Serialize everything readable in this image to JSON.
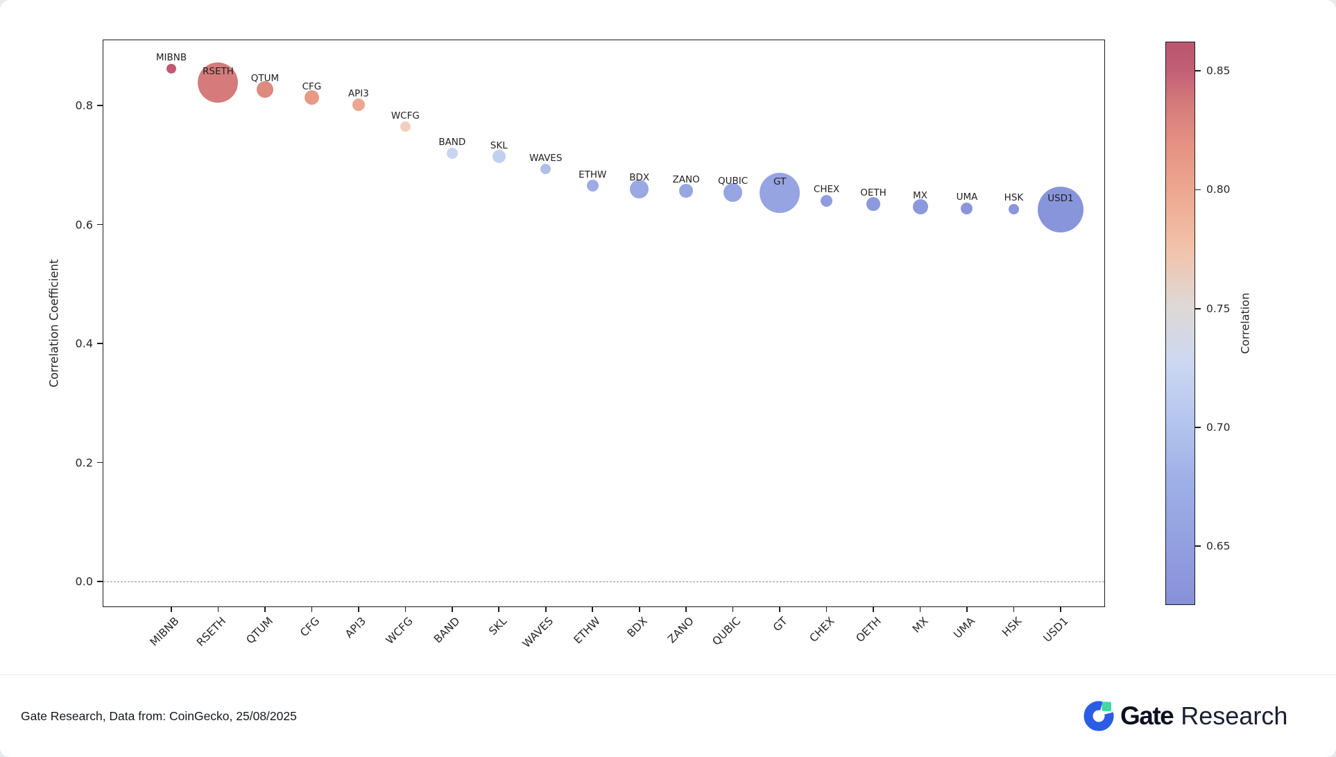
{
  "chart_data": {
    "type": "scatter",
    "title": "",
    "xlabel": "",
    "ylabel": "Correlation Coefficient",
    "y_ticks": [
      0.8,
      0.6,
      0.4,
      0.2,
      0.0
    ],
    "ylim": [
      -0.045,
      0.91
    ],
    "zero_line": 0.0,
    "grid": false,
    "colorbar": {
      "label": "Correlation",
      "ticks": [
        0.85,
        0.8,
        0.75,
        0.7,
        0.65
      ],
      "vmin": 0.625,
      "vmax": 0.862
    },
    "points": [
      {
        "label": "MIBNB",
        "value": 0.862,
        "size": 14,
        "color": "#c05a74"
      },
      {
        "label": "RSETH",
        "value": 0.838,
        "size": 58,
        "color": "#d57b7b"
      },
      {
        "label": "QTUM",
        "value": 0.827,
        "size": 24,
        "color": "#dd8a80"
      },
      {
        "label": "CFG",
        "value": 0.813,
        "size": 21,
        "color": "#e89a87"
      },
      {
        "label": "API3",
        "value": 0.801,
        "size": 18,
        "color": "#eda68f"
      },
      {
        "label": "WCFG",
        "value": 0.764,
        "size": 15,
        "color": "#f2cfbc"
      },
      {
        "label": "BAND",
        "value": 0.72,
        "size": 16,
        "color": "#c8d5f1"
      },
      {
        "label": "SKL",
        "value": 0.714,
        "size": 19,
        "color": "#c2d0ef"
      },
      {
        "label": "WAVES",
        "value": 0.693,
        "size": 15,
        "color": "#aebfea"
      },
      {
        "label": "ETHW",
        "value": 0.665,
        "size": 17,
        "color": "#9dace5"
      },
      {
        "label": "BDX",
        "value": 0.66,
        "size": 27,
        "color": "#9aa9e3"
      },
      {
        "label": "ZANO",
        "value": 0.656,
        "size": 20,
        "color": "#98a6e2"
      },
      {
        "label": "QUBIC",
        "value": 0.654,
        "size": 27,
        "color": "#97a5e2"
      },
      {
        "label": "GT",
        "value": 0.653,
        "size": 58,
        "color": "#97a4e2"
      },
      {
        "label": "CHEX",
        "value": 0.64,
        "size": 17,
        "color": "#8f9ddf"
      },
      {
        "label": "OETH",
        "value": 0.634,
        "size": 20,
        "color": "#8c9add"
      },
      {
        "label": "MX",
        "value": 0.63,
        "size": 22,
        "color": "#8b98dc"
      },
      {
        "label": "UMA",
        "value": 0.627,
        "size": 17,
        "color": "#8a96db"
      },
      {
        "label": "HSK",
        "value": 0.626,
        "size": 15,
        "color": "#8996db"
      },
      {
        "label": "USD1",
        "value": 0.625,
        "size": 66,
        "color": "#8895da"
      }
    ]
  },
  "footer": {
    "source_text": "Gate Research, Data from: CoinGecko, 25/08/2025",
    "logo": {
      "gate": "Gate",
      "research": "Research"
    }
  },
  "colors": {
    "logo_blue": "#2b5ce6",
    "logo_green": "#3fd9a4",
    "axis": "#1a1a1a"
  }
}
